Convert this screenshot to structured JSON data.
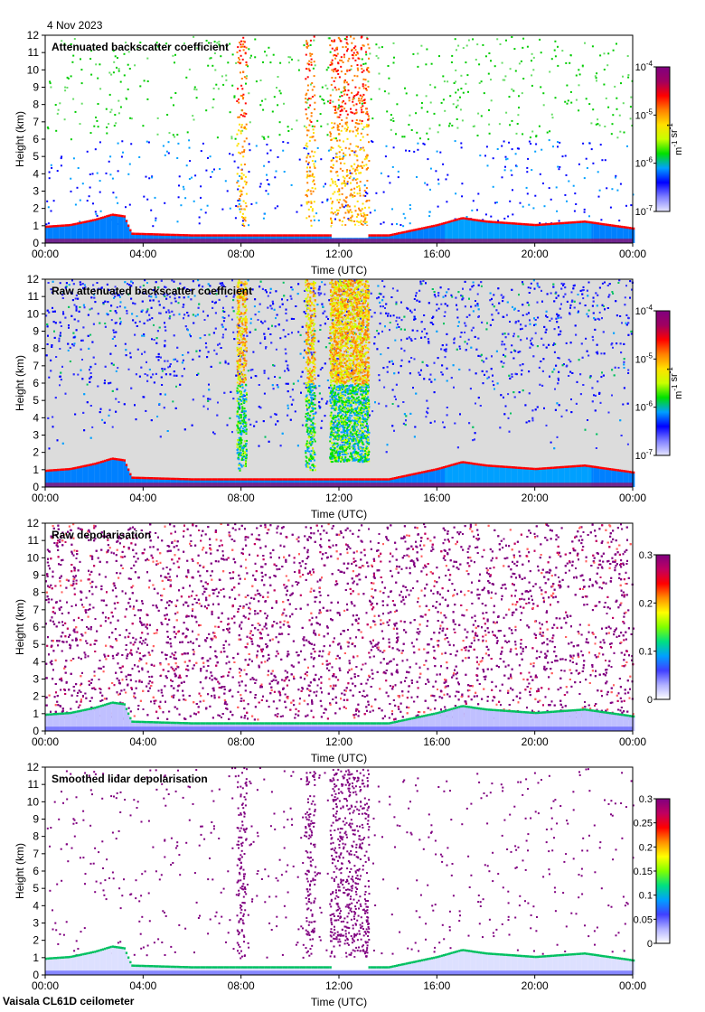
{
  "date_label": "4 Nov 2023",
  "instrument_label": "Vaisala CL61D ceilometer",
  "chart_data": [
    {
      "type": "heatmap",
      "title": "Attenuated backscatter coefficient",
      "xlabel": "Time (UTC)",
      "ylabel": "Height (km)",
      "x_ticks": [
        "00:00",
        "04:00",
        "08:00",
        "12:00",
        "16:00",
        "20:00",
        "00:00"
      ],
      "xlim_hours": [
        0,
        24
      ],
      "ylim": [
        0,
        12
      ],
      "y_ticks": [
        "0",
        "1",
        "2",
        "3",
        "4",
        "5",
        "6",
        "7",
        "8",
        "9",
        "10",
        "11",
        "12"
      ],
      "colorbar": {
        "scale": "log",
        "ticks": [
          "10-7",
          "10-6",
          "10-5",
          "10-4"
        ],
        "tick_labels": [
          {
            "base": "10",
            "exp": "-7"
          },
          {
            "base": "10",
            "exp": "-6"
          },
          {
            "base": "10",
            "exp": "-5"
          },
          {
            "base": "10",
            "exp": "-4"
          }
        ],
        "units": "m-1 sr-1",
        "units_parts": [
          {
            "base": "m",
            "exp": "-1"
          },
          {
            "base": " sr",
            "exp": "-1"
          }
        ]
      },
      "boundary_layer_top_km": [
        [
          0,
          0.9
        ],
        [
          1,
          1.0
        ],
        [
          2,
          1.3
        ],
        [
          2.7,
          1.6
        ],
        [
          3.2,
          1.5
        ],
        [
          3.5,
          0.5
        ],
        [
          6,
          0.4
        ],
        [
          10,
          0.4
        ],
        [
          14,
          0.4
        ],
        [
          16,
          1.0
        ],
        [
          17,
          1.4
        ],
        [
          18,
          1.2
        ],
        [
          20,
          1.0
        ],
        [
          22,
          1.2
        ],
        [
          24,
          0.8
        ]
      ],
      "cloud_columns_hours": [
        [
          7.8,
          8.2
        ],
        [
          10.6,
          11.0
        ],
        [
          11.6,
          13.2
        ]
      ]
    },
    {
      "type": "heatmap",
      "title": "Raw attenuated backscatter coefficient",
      "xlabel": "Time (UTC)",
      "ylabel": "Height (km)",
      "x_ticks": [
        "00:00",
        "04:00",
        "08:00",
        "12:00",
        "16:00",
        "20:00",
        "00:00"
      ],
      "xlim_hours": [
        0,
        24
      ],
      "ylim": [
        0,
        12
      ],
      "y_ticks": [
        "0",
        "1",
        "2",
        "3",
        "4",
        "5",
        "6",
        "7",
        "8",
        "9",
        "10",
        "11",
        "12"
      ],
      "colorbar": {
        "scale": "log",
        "ticks": [
          "10-7",
          "10-6",
          "10-5",
          "10-4"
        ],
        "tick_labels": [
          {
            "base": "10",
            "exp": "-7"
          },
          {
            "base": "10",
            "exp": "-6"
          },
          {
            "base": "10",
            "exp": "-5"
          },
          {
            "base": "10",
            "exp": "-4"
          }
        ],
        "units": "m-1 sr-1",
        "units_parts": [
          {
            "base": "m",
            "exp": "-1"
          },
          {
            "base": " sr",
            "exp": "-1"
          }
        ]
      },
      "boundary_layer_top_km": [
        [
          0,
          0.9
        ],
        [
          1,
          1.0
        ],
        [
          2,
          1.3
        ],
        [
          2.7,
          1.6
        ],
        [
          3.2,
          1.5
        ],
        [
          3.5,
          0.5
        ],
        [
          6,
          0.4
        ],
        [
          10,
          0.4
        ],
        [
          14,
          0.4
        ],
        [
          16,
          1.0
        ],
        [
          17,
          1.4
        ],
        [
          18,
          1.2
        ],
        [
          20,
          1.0
        ],
        [
          22,
          1.2
        ],
        [
          24,
          0.8
        ]
      ],
      "cloud_columns_hours": [
        [
          7.8,
          8.2
        ],
        [
          10.6,
          11.0
        ],
        [
          11.6,
          13.2
        ]
      ]
    },
    {
      "type": "heatmap",
      "title": "Raw depolarisation",
      "xlabel": "Time (UTC)",
      "ylabel": "Height (km)",
      "x_ticks": [
        "00:00",
        "04:00",
        "08:00",
        "12:00",
        "16:00",
        "20:00",
        "00:00"
      ],
      "xlim_hours": [
        0,
        24
      ],
      "ylim": [
        0,
        12
      ],
      "y_ticks": [
        "0",
        "1",
        "2",
        "3",
        "4",
        "5",
        "6",
        "7",
        "8",
        "9",
        "10",
        "11",
        "12"
      ],
      "colorbar": {
        "scale": "linear",
        "range": [
          0,
          0.3
        ],
        "ticks": [
          "0",
          "0.1",
          "0.2",
          "0.3"
        ]
      },
      "boundary_layer_top_km": [
        [
          0,
          0.9
        ],
        [
          1,
          1.0
        ],
        [
          2,
          1.3
        ],
        [
          2.7,
          1.6
        ],
        [
          3.2,
          1.5
        ],
        [
          3.5,
          0.5
        ],
        [
          6,
          0.4
        ],
        [
          10,
          0.4
        ],
        [
          14,
          0.4
        ],
        [
          16,
          1.0
        ],
        [
          17,
          1.4
        ],
        [
          18,
          1.2
        ],
        [
          20,
          1.0
        ],
        [
          22,
          1.2
        ],
        [
          24,
          0.8
        ]
      ]
    },
    {
      "type": "heatmap",
      "title": "Smoothed lidar depolarisation",
      "xlabel": "Time (UTC)",
      "ylabel": "Height (km)",
      "x_ticks": [
        "00:00",
        "04:00",
        "08:00",
        "12:00",
        "16:00",
        "20:00",
        "00:00"
      ],
      "xlim_hours": [
        0,
        24
      ],
      "ylim": [
        0,
        12
      ],
      "y_ticks": [
        "0",
        "1",
        "2",
        "3",
        "4",
        "5",
        "6",
        "7",
        "8",
        "9",
        "10",
        "11",
        "12"
      ],
      "colorbar": {
        "scale": "linear",
        "range": [
          0,
          0.3
        ],
        "ticks": [
          "0",
          "0.05",
          "0.1",
          "0.15",
          "0.2",
          "0.25",
          "0.3"
        ]
      },
      "boundary_layer_top_km": [
        [
          0,
          0.9
        ],
        [
          1,
          1.0
        ],
        [
          2,
          1.3
        ],
        [
          2.7,
          1.6
        ],
        [
          3.2,
          1.5
        ],
        [
          3.5,
          0.5
        ],
        [
          6,
          0.4
        ],
        [
          10,
          0.4
        ],
        [
          14,
          0.4
        ],
        [
          16,
          1.0
        ],
        [
          17,
          1.4
        ],
        [
          18,
          1.2
        ],
        [
          20,
          1.0
        ],
        [
          22,
          1.2
        ],
        [
          24,
          0.8
        ]
      ],
      "cloud_columns_hours": [
        [
          7.8,
          8.2
        ],
        [
          10.6,
          11.0
        ],
        [
          11.6,
          13.2
        ]
      ]
    }
  ]
}
